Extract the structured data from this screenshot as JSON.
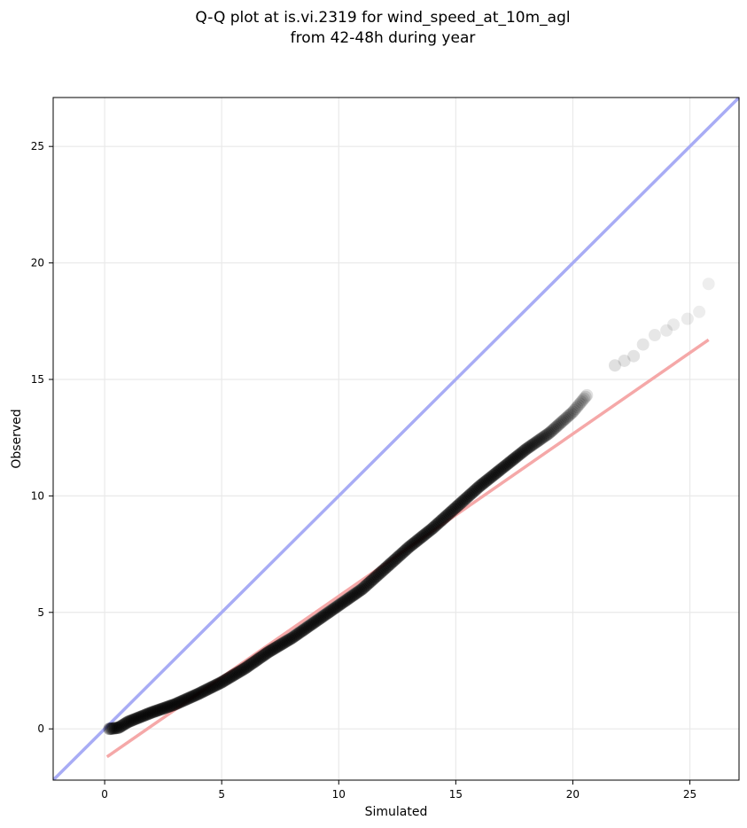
{
  "chart_data": {
    "type": "scatter",
    "title": "Q-Q plot at is.vi.2319 for wind_speed_at_10m_agl",
    "subtitle": "from 42-48h during year",
    "xlabel": "Simulated",
    "ylabel": "Observed",
    "xlim": [
      -2.2,
      27.1
    ],
    "ylim": [
      -2.2,
      27.1
    ],
    "xticks": [
      0,
      5,
      10,
      15,
      20,
      25
    ],
    "yticks": [
      0,
      5,
      10,
      15,
      20,
      25
    ],
    "xtick_labels": [
      "0",
      "5",
      "10",
      "15",
      "20",
      "25"
    ],
    "ytick_labels": [
      "0",
      "5",
      "10",
      "15",
      "20",
      "25"
    ],
    "grid": true,
    "reference_line": {
      "color": "#a8acf5",
      "x": [
        -2.2,
        27.1
      ],
      "y": [
        -2.2,
        27.1
      ]
    },
    "fit_line": {
      "color": "#f5a8a8",
      "x": [
        0.1,
        25.8
      ],
      "y": [
        -1.2,
        16.7
      ]
    },
    "point_color": "#000000",
    "quantile_curve": [
      [
        0.2,
        0.0
      ],
      [
        0.6,
        0.05
      ],
      [
        1.0,
        0.3
      ],
      [
        1.5,
        0.5
      ],
      [
        2.0,
        0.7
      ],
      [
        3.0,
        1.05
      ],
      [
        4.0,
        1.5
      ],
      [
        5.0,
        2.0
      ],
      [
        6.0,
        2.6
      ],
      [
        7.0,
        3.3
      ],
      [
        8.0,
        3.9
      ],
      [
        9.0,
        4.6
      ],
      [
        10.0,
        5.3
      ],
      [
        11.0,
        6.0
      ],
      [
        12.0,
        6.9
      ],
      [
        13.0,
        7.8
      ],
      [
        14.0,
        8.6
      ],
      [
        15.0,
        9.5
      ],
      [
        16.0,
        10.4
      ],
      [
        17.0,
        11.2
      ],
      [
        18.0,
        12.0
      ],
      [
        19.0,
        12.7
      ],
      [
        20.0,
        13.6
      ],
      [
        21.0,
        14.8
      ],
      [
        22.0,
        15.7
      ],
      [
        23.0,
        16.7
      ],
      [
        24.0,
        17.2
      ],
      [
        25.0,
        17.7
      ]
    ],
    "tail_points": [
      [
        21.8,
        15.6
      ],
      [
        22.2,
        15.8
      ],
      [
        22.6,
        16.0
      ],
      [
        23.0,
        16.5
      ],
      [
        23.5,
        16.9
      ],
      [
        24.0,
        17.1
      ],
      [
        24.3,
        17.35
      ],
      [
        24.9,
        17.6
      ],
      [
        25.4,
        17.9
      ],
      [
        25.8,
        19.1
      ]
    ]
  }
}
